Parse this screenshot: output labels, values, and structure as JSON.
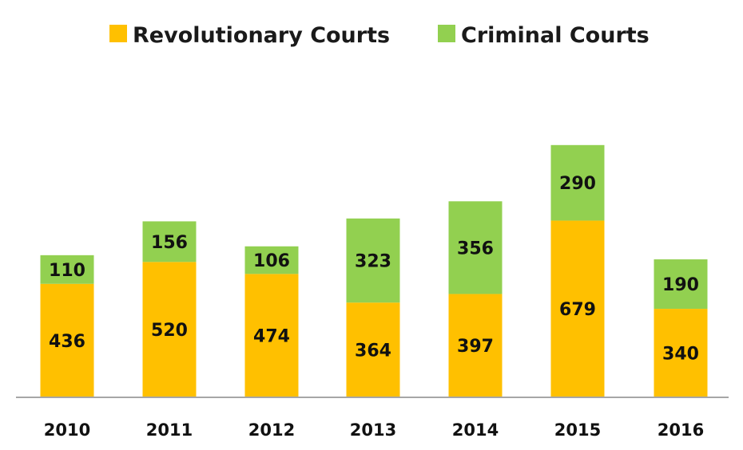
{
  "chart_data": {
    "type": "bar",
    "stacked": true,
    "categories": [
      "2010",
      "2011",
      "2012",
      "2013",
      "2014",
      "2015",
      "2016"
    ],
    "series": [
      {
        "name": "Revolutionary Courts",
        "color": "#ffc000",
        "values": [
          436,
          520,
          474,
          364,
          397,
          679,
          340
        ]
      },
      {
        "name": "Criminal Courts",
        "color": "#92d050",
        "values": [
          110,
          156,
          106,
          323,
          356,
          290,
          190
        ]
      }
    ],
    "legend": "top",
    "grid": false,
    "axis_color": "#a6a6a6"
  }
}
